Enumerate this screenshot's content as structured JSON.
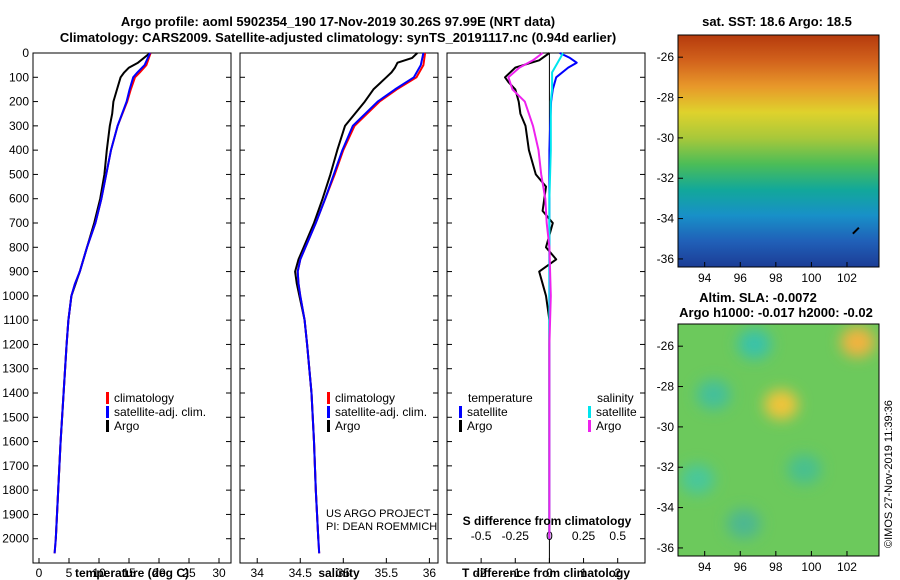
{
  "header": {
    "title_line1": "Argo profile: aoml 5902354_190 17-Nov-2019 30.26S 97.99E (NRT data)",
    "title_line2": "Climatology: CARS2009. Satellite-adjusted climatology: synTS_20191117.nc (0.94d earlier)"
  },
  "colors": {
    "climatology": "#ff0000",
    "satellite": "#0000ff",
    "argo": "#000000",
    "sat_salinity": "#00e5ee",
    "argo_salinity": "#ee22ee"
  },
  "depth_axis": {
    "range": [
      2100,
      0
    ],
    "ticks": [
      "0",
      "100",
      "200",
      "300",
      "400",
      "500",
      "600",
      "700",
      "800",
      "900",
      "1000",
      "1100",
      "1200",
      "1300",
      "1400",
      "1500",
      "1600",
      "1700",
      "1800",
      "1900",
      "2000"
    ]
  },
  "chart_data": [
    {
      "type": "line",
      "name": "temperature",
      "xlabel": "temperature (deg C)",
      "ylabel": "depth",
      "xlim": [
        -1,
        32
      ],
      "ylim": [
        2100,
        0
      ],
      "xticks": [
        "0",
        "5",
        "10",
        "15",
        "20",
        "25",
        "30"
      ],
      "legend": [
        "climatology",
        "satellite-adj. clim.",
        "Argo"
      ],
      "series": [
        {
          "name": "climatology",
          "depth": [
            0,
            50,
            80,
            100,
            150,
            200,
            300,
            400,
            500,
            600,
            700,
            800,
            900,
            950,
            1000,
            1100,
            1200,
            1400,
            1600,
            1800,
            2000,
            2060
          ],
          "values": [
            18.6,
            17.9,
            16.8,
            16.0,
            15.3,
            14.7,
            13.1,
            12.0,
            11.2,
            10.4,
            9.4,
            8.0,
            6.8,
            6.0,
            5.4,
            4.9,
            4.6,
            4.1,
            3.6,
            3.2,
            2.8,
            2.6
          ]
        },
        {
          "name": "satellite-adj. clim.",
          "depth": [
            0,
            50,
            80,
            100,
            150,
            200,
            300,
            400,
            500,
            600,
            700,
            800,
            900,
            950,
            1000,
            1100,
            1200,
            1400,
            1600,
            1800,
            2000,
            2060
          ],
          "values": [
            18.5,
            17.6,
            16.4,
            15.7,
            15.1,
            14.6,
            13.1,
            12.0,
            11.2,
            10.4,
            9.4,
            8.0,
            6.8,
            6.0,
            5.4,
            4.9,
            4.6,
            4.1,
            3.6,
            3.2,
            2.8,
            2.6
          ]
        },
        {
          "name": "Argo",
          "depth": [
            0,
            40,
            60,
            80,
            100,
            150,
            200,
            250,
            300,
            400,
            500,
            600,
            700,
            800,
            900,
            950,
            1000,
            1100,
            1200,
            1400,
            1600,
            1800,
            2000
          ],
          "values": [
            18.5,
            16.5,
            15.0,
            14.2,
            13.6,
            13.0,
            12.4,
            12.2,
            11.8,
            11.3,
            10.9,
            10.2,
            9.2,
            8.0,
            6.8,
            6.1,
            5.4,
            4.9,
            4.6,
            4.1,
            3.6,
            3.2,
            2.8
          ]
        }
      ]
    },
    {
      "type": "line",
      "name": "salinity",
      "xlabel": "salinity",
      "ylabel": "depth",
      "xlim": [
        33.8,
        36.1
      ],
      "ylim": [
        2100,
        0
      ],
      "xticks": [
        "34",
        "34.5",
        "35",
        "35.5",
        "36"
      ],
      "legend": [
        "climatology",
        "satellite-adj. clim.",
        "Argo"
      ],
      "series": [
        {
          "name": "climatology",
          "depth": [
            0,
            50,
            100,
            150,
            200,
            300,
            400,
            500,
            600,
            700,
            800,
            850,
            900,
            950,
            1000,
            1100,
            1200,
            1400,
            1600,
            1800,
            2000,
            2060
          ],
          "values": [
            35.95,
            35.93,
            35.85,
            35.62,
            35.42,
            35.13,
            35.0,
            34.9,
            34.79,
            34.68,
            34.56,
            34.5,
            34.47,
            34.48,
            34.5,
            34.55,
            34.58,
            34.63,
            34.66,
            34.68,
            34.71,
            34.72
          ]
        },
        {
          "name": "satellite-adj. clim.",
          "depth": [
            0,
            50,
            100,
            150,
            200,
            300,
            400,
            500,
            600,
            700,
            800,
            850,
            900,
            950,
            1000,
            1100,
            1200,
            1400,
            1600,
            1800,
            2000,
            2060
          ],
          "values": [
            35.93,
            35.9,
            35.82,
            35.6,
            35.4,
            35.11,
            34.99,
            34.89,
            34.79,
            34.68,
            34.56,
            34.5,
            34.47,
            34.48,
            34.5,
            34.55,
            34.58,
            34.63,
            34.66,
            34.68,
            34.71,
            34.72
          ]
        },
        {
          "name": "Argo",
          "depth": [
            0,
            20,
            40,
            60,
            80,
            100,
            150,
            200,
            300,
            400,
            500,
            600,
            700,
            800,
            850,
            900,
            950,
            1000,
            1100,
            1200,
            1400,
            1600,
            1800,
            2000
          ],
          "values": [
            35.86,
            35.8,
            35.63,
            35.6,
            35.56,
            35.5,
            35.35,
            35.25,
            35.02,
            34.93,
            34.85,
            34.76,
            34.66,
            34.54,
            34.48,
            34.44,
            34.46,
            34.49,
            34.55,
            34.58,
            34.63,
            34.66,
            34.68,
            34.71
          ]
        }
      ]
    },
    {
      "type": "line",
      "name": "difference from climatology",
      "xlabel": "T difference from climatology",
      "x2label": "S difference from climatology",
      "xlim": [
        -3,
        2.8
      ],
      "x2lim": [
        -0.75,
        0.7
      ],
      "ylim": [
        2100,
        0
      ],
      "xticks": [
        "-2",
        "-1",
        "0",
        "1",
        "2"
      ],
      "x2ticks": [
        "-0.5",
        "-0.25",
        "0",
        "0.25",
        "0.5"
      ],
      "legend_temperature_title": "temperature",
      "legend_salinity_title": "salinity",
      "legend_temperature": [
        "satellite",
        "Argo"
      ],
      "legend_salinity": [
        "satellite",
        "Argo"
      ],
      "series": [
        {
          "name": "T satellite",
          "axis": "T",
          "depth": [
            0,
            20,
            40,
            60,
            100,
            150,
            200,
            300,
            400,
            500,
            600,
            800,
            1000,
            1200,
            1500,
            2000
          ],
          "values": [
            0.3,
            0.6,
            0.8,
            0.55,
            0.2,
            0.1,
            0.05,
            0.02,
            0,
            0,
            0,
            0,
            0,
            0,
            0,
            0
          ]
        },
        {
          "name": "T Argo",
          "axis": "T",
          "depth": [
            0,
            30,
            60,
            100,
            120,
            150,
            200,
            250,
            300,
            400,
            500,
            550,
            650,
            700,
            800,
            850,
            880,
            900,
            950,
            1000,
            1050,
            1100,
            1200,
            1500,
            2000
          ],
          "values": [
            0,
            -0.3,
            -1.0,
            -1.3,
            -1.2,
            -1.0,
            -0.9,
            -0.85,
            -0.7,
            -0.6,
            -0.4,
            -0.1,
            -0.2,
            0.1,
            -0.1,
            0.2,
            -0.1,
            -0.3,
            -0.2,
            -0.1,
            -0.05,
            0,
            0,
            0,
            0
          ]
        },
        {
          "name": "S satellite",
          "axis": "S",
          "depth": [
            0,
            40,
            80,
            100,
            150,
            200,
            400,
            600,
            800,
            1000,
            2000
          ],
          "values": [
            0.1,
            0.06,
            0.02,
            0.02,
            0.02,
            0.01,
            0.01,
            0,
            0,
            0,
            0
          ]
        },
        {
          "name": "S Argo",
          "axis": "S",
          "depth": [
            0,
            30,
            60,
            100,
            150,
            200,
            300,
            400,
            500,
            600,
            700,
            800,
            1000,
            1200,
            1500,
            2000
          ],
          "values": [
            -0.05,
            -0.12,
            -0.22,
            -0.3,
            -0.27,
            -0.18,
            -0.12,
            -0.08,
            -0.06,
            -0.03,
            -0.02,
            0,
            0.01,
            0,
            0,
            0
          ]
        }
      ]
    },
    {
      "type": "heatmap",
      "name": "sat SST map",
      "title": "sat. SST: 18.6 Argo: 18.5",
      "xlim": [
        92.5,
        103.8
      ],
      "ylim": [
        -36.4,
        -24.9
      ],
      "xticks": [
        "94",
        "96",
        "98",
        "100",
        "102"
      ],
      "yticks": [
        "-26",
        "-28",
        "-30",
        "-32",
        "-34",
        "-36"
      ],
      "color_rows_top_to_bottom": [
        "#b53a0d",
        "#d2621c",
        "#e8982a",
        "#dfd22c",
        "#a8c83a",
        "#4cbd57",
        "#12a89a",
        "#1890c8",
        "#2060b8",
        "#1c3d96"
      ],
      "marker": {
        "lon": 102.5,
        "lat": -34.6
      }
    },
    {
      "type": "heatmap",
      "name": "altimetry SLA map",
      "title": "Altim. SLA: -0.0072",
      "subtitle": "Argo h1000: -0.017 h2000: -0.02",
      "xlim": [
        92.5,
        103.8
      ],
      "ylim": [
        -36.4,
        -24.9
      ],
      "xticks": [
        "94",
        "96",
        "98",
        "100",
        "102"
      ],
      "yticks": [
        "-26",
        "-28",
        "-30",
        "-32",
        "-34",
        "-36"
      ],
      "blobs": [
        {
          "lon": 102.6,
          "lat": -25.8,
          "color": "#f2b340"
        },
        {
          "lon": 98.3,
          "lat": -28.9,
          "color": "#f0c43a"
        },
        {
          "lon": 96.8,
          "lat": -25.9,
          "color": "#3ac2a8"
        },
        {
          "lon": 94.5,
          "lat": -28.4,
          "color": "#44c09a"
        },
        {
          "lon": 99.6,
          "lat": -32.1,
          "color": "#48c08e"
        },
        {
          "lon": 96.2,
          "lat": -34.8,
          "color": "#4db890"
        },
        {
          "lon": 93.6,
          "lat": -32.6,
          "color": "#4ac79a"
        }
      ]
    }
  ],
  "credits": {
    "project": "US ARGO PROJECT",
    "pi": "PI: DEAN ROEMMICH",
    "stamp": "©IMOS 27-Nov-2019 11:39:36"
  }
}
